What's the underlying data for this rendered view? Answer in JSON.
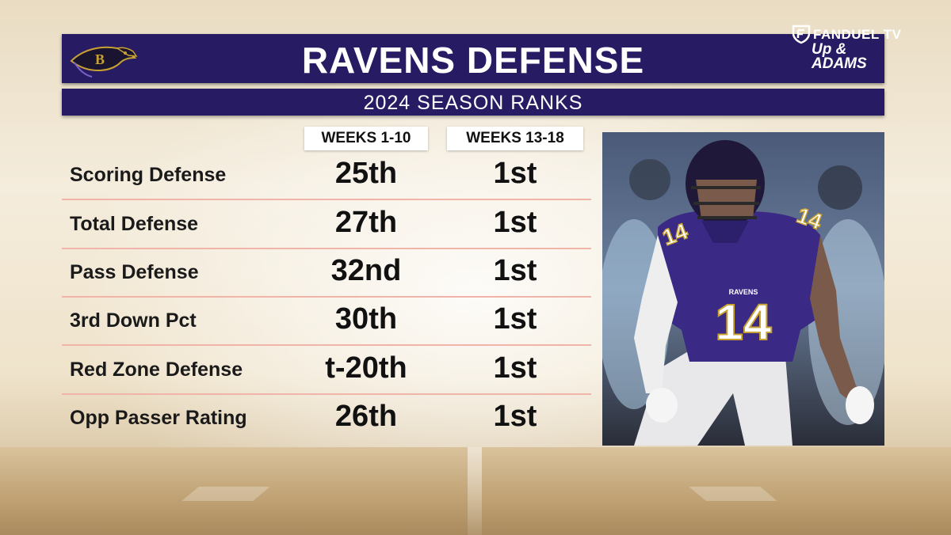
{
  "header": {
    "title": "RAVENS DEFENSE",
    "logo_icon": "ravens-logo-icon"
  },
  "subheader": {
    "title": "2024 SEASON RANKS"
  },
  "watermark": {
    "line1": "FANDUEL TV",
    "line2": "Up &",
    "line3": "ADAMS"
  },
  "table": {
    "columns": [
      "WEEKS 1-10",
      "WEEKS 13-18"
    ],
    "rows": [
      {
        "label": "Scoring Defense",
        "weeks_1_10": "25th",
        "weeks_13_18": "1st"
      },
      {
        "label": "Total Defense",
        "weeks_1_10": "27th",
        "weeks_13_18": "1st"
      },
      {
        "label": "Pass Defense",
        "weeks_1_10": "32nd",
        "weeks_13_18": "1st"
      },
      {
        "label": "3rd Down Pct",
        "weeks_1_10": "30th",
        "weeks_13_18": "1st"
      },
      {
        "label": "Red Zone Defense",
        "weeks_1_10": "t-20th",
        "weeks_13_18": "1st"
      },
      {
        "label": "Opp Passer Rating",
        "weeks_1_10": "26th",
        "weeks_13_18": "1st"
      }
    ]
  },
  "photo": {
    "jersey_number": "14",
    "jersey_wordmark": "RAVENS"
  },
  "colors": {
    "banner": "#271b63",
    "divider": "#f0b5a8",
    "jersey": "#3a2a86"
  }
}
